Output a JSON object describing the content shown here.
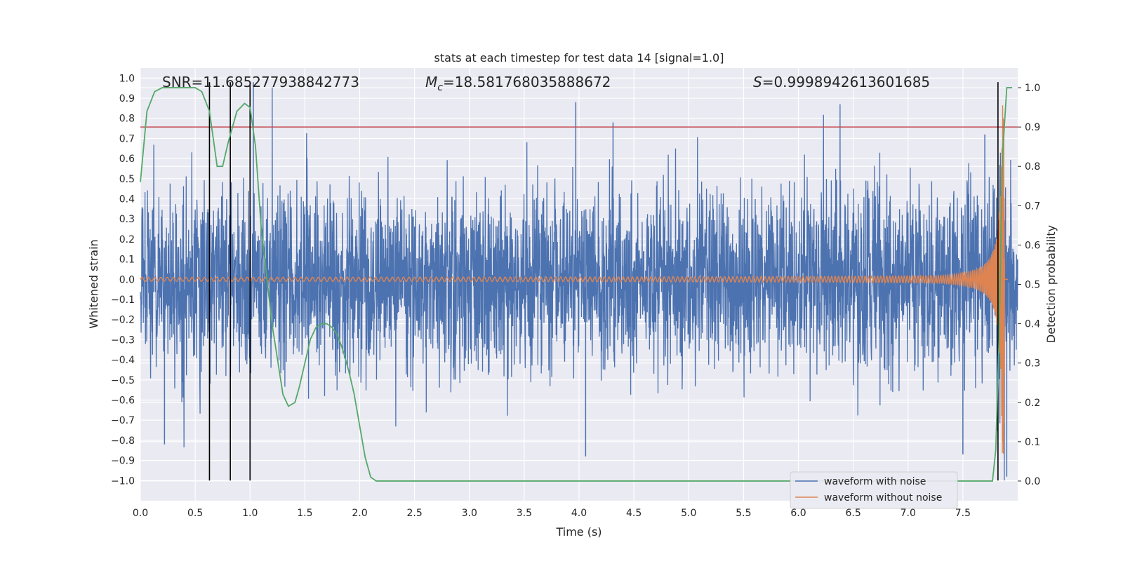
{
  "chart_data": {
    "type": "line",
    "title": "stats at each timestep for test data 14 [signal=1.0]",
    "xlabel": "Time (s)",
    "ylabel": "Whitened strain",
    "y2label": "Detection probability",
    "xlim": [
      0.0,
      8.0
    ],
    "ylim": [
      -1.1,
      1.05
    ],
    "y2lim": [
      -0.05,
      1.05
    ],
    "xticks": [
      "0.0",
      "0.5",
      "1.0",
      "1.5",
      "2.0",
      "2.5",
      "3.0",
      "3.5",
      "4.0",
      "4.5",
      "5.0",
      "5.5",
      "6.0",
      "6.5",
      "7.0",
      "7.5"
    ],
    "yticks": [
      "−1.0",
      "−0.9",
      "−0.8",
      "−0.7",
      "−0.6",
      "−0.5",
      "−0.4",
      "−0.3",
      "−0.2",
      "−0.1",
      "0.0",
      "0.1",
      "0.2",
      "0.3",
      "0.4",
      "0.5",
      "0.6",
      "0.7",
      "0.8",
      "0.9",
      "1.0"
    ],
    "y2ticks": [
      "0.0",
      "0.1",
      "0.2",
      "0.3",
      "0.4",
      "0.5",
      "0.6",
      "0.7",
      "0.8",
      "0.9",
      "1.0"
    ],
    "annotations": {
      "snr": "SNR=11.685277938842773",
      "mc_prefix": "M",
      "mc_sub": "c",
      "mc_value": "=18.581768035888672",
      "s_prefix": "S",
      "s_value": "=0.9998942613601685"
    },
    "legend": {
      "placement": "lower-right",
      "entries": [
        "waveform with noise",
        "waveform without noise"
      ]
    },
    "threshold": {
      "axis": "right",
      "value": 0.9,
      "color": "#c44e52"
    },
    "vertical_markers": {
      "x": [
        0.63,
        0.82,
        1.0,
        7.82
      ],
      "y_from": -1.0,
      "y_to": 0.98,
      "color": "#000000"
    },
    "series": [
      {
        "name": "waveform with noise",
        "color": "#4c72b0",
        "axis": "left",
        "notable_peaks": [
          {
            "x": 0.22,
            "y": -0.82
          },
          {
            "x": 1.03,
            "y": 0.98
          },
          {
            "x": 3.97,
            "y": 0.88
          },
          {
            "x": 4.06,
            "y": -0.88
          },
          {
            "x": 4.31,
            "y": 0.78
          },
          {
            "x": 7.5,
            "y": -0.87
          },
          {
            "x": 7.7,
            "y": 0.72
          },
          {
            "x": 7.9,
            "y": -0.98
          }
        ],
        "typical_amplitude": 0.4
      },
      {
        "name": "waveform without noise",
        "color": "#dd8452",
        "axis": "left",
        "chirp": {
          "start_time": 0.0,
          "merger_time": 7.88,
          "start_amplitude": 0.01,
          "peak_amplitude": 0.88
        }
      },
      {
        "name": "detection probability",
        "color": "#55a868",
        "axis": "right",
        "x": [
          0.0,
          0.06,
          0.13,
          0.2,
          0.3,
          0.4,
          0.5,
          0.56,
          0.63,
          0.7,
          0.75,
          0.8,
          0.88,
          0.95,
          1.0,
          1.05,
          1.1,
          1.2,
          1.3,
          1.35,
          1.41,
          1.45,
          1.5,
          1.55,
          1.6,
          1.65,
          1.7,
          1.75,
          1.8,
          1.85,
          1.9,
          1.95,
          2.0,
          2.05,
          2.1,
          2.15,
          2.2,
          3.0,
          4.0,
          5.0,
          6.0,
          7.0,
          7.77,
          7.8,
          7.83,
          7.86,
          7.9,
          7.95
        ],
        "y": [
          0.76,
          0.94,
          0.99,
          1.0,
          1.0,
          1.0,
          1.0,
          0.99,
          0.94,
          0.8,
          0.8,
          0.86,
          0.94,
          0.96,
          0.95,
          0.85,
          0.65,
          0.4,
          0.22,
          0.19,
          0.2,
          0.24,
          0.3,
          0.36,
          0.39,
          0.4,
          0.4,
          0.39,
          0.37,
          0.33,
          0.28,
          0.22,
          0.14,
          0.06,
          0.01,
          0.0,
          0.0,
          0.0,
          0.0,
          0.0,
          0.0,
          0.0,
          0.0,
          0.08,
          0.36,
          0.82,
          1.0,
          1.0
        ]
      }
    ]
  }
}
